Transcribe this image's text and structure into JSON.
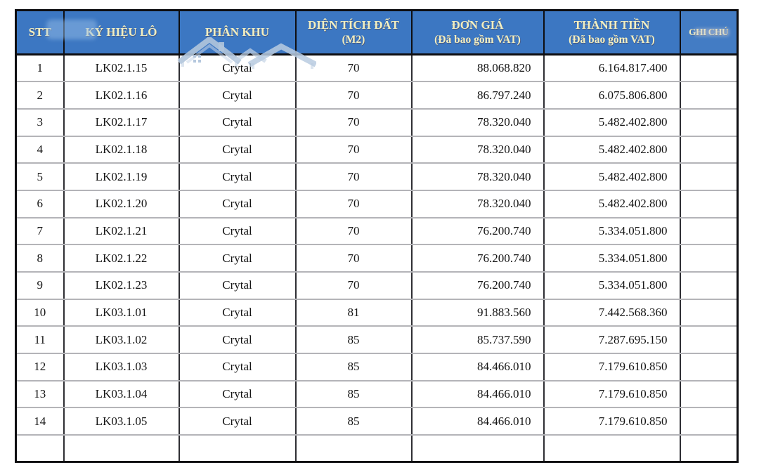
{
  "colors": {
    "header_bg": "#3c77c2",
    "header_text": "#f2efc2",
    "cell_text": "#141414",
    "outer_border": "#0e0e11",
    "row_divider": "#b4b4b8",
    "col_divider": "#2e2e33",
    "watermark_blue": "#b5c6da",
    "page_bg": "#ffffff"
  },
  "table": {
    "col_keys": [
      "stt",
      "lot",
      "zone",
      "area",
      "price",
      "total",
      "note"
    ],
    "header": {
      "stt": "STT",
      "lot": "KÝ HIỆU LÔ",
      "zone": "PHÂN KHU",
      "area_line1": "DIỆN TÍCH ĐẤT",
      "area_line2": "(M2)",
      "price_line1": "ĐƠN GIÁ",
      "price_line2": "(Đã bao gồm VAT)",
      "total_line1": "THÀNH TIỀN",
      "total_line2": "(Đã bao gồm VAT)",
      "note": "GHI CHÚ"
    },
    "rows": [
      {
        "stt": "1",
        "lot": "LK02.1.15",
        "zone": "Crytal",
        "area": "70",
        "price": "88.068.820",
        "total": "6.164.817.400",
        "note": ""
      },
      {
        "stt": "2",
        "lot": "LK02.1.16",
        "zone": "Crytal",
        "area": "70",
        "price": "86.797.240",
        "total": "6.075.806.800",
        "note": ""
      },
      {
        "stt": "3",
        "lot": "LK02.1.17",
        "zone": "Crytal",
        "area": "70",
        "price": "78.320.040",
        "total": "5.482.402.800",
        "note": ""
      },
      {
        "stt": "4",
        "lot": "LK02.1.18",
        "zone": "Crytal",
        "area": "70",
        "price": "78.320.040",
        "total": "5.482.402.800",
        "note": ""
      },
      {
        "stt": "5",
        "lot": "LK02.1.19",
        "zone": "Crytal",
        "area": "70",
        "price": "78.320.040",
        "total": "5.482.402.800",
        "note": ""
      },
      {
        "stt": "6",
        "lot": "LK02.1.20",
        "zone": "Crytal",
        "area": "70",
        "price": "78.320.040",
        "total": "5.482.402.800",
        "note": ""
      },
      {
        "stt": "7",
        "lot": "LK02.1.21",
        "zone": "Crytal",
        "area": "70",
        "price": "76.200.740",
        "total": "5.334.051.800",
        "note": ""
      },
      {
        "stt": "8",
        "lot": "LK02.1.22",
        "zone": "Crytal",
        "area": "70",
        "price": "76.200.740",
        "total": "5.334.051.800",
        "note": ""
      },
      {
        "stt": "9",
        "lot": "LK02.1.23",
        "zone": "Crytal",
        "area": "70",
        "price": "76.200.740",
        "total": "5.334.051.800",
        "note": ""
      },
      {
        "stt": "10",
        "lot": "LK03.1.01",
        "zone": "Crytal",
        "area": "81",
        "price": "91.883.560",
        "total": "7.442.568.360",
        "note": ""
      },
      {
        "stt": "11",
        "lot": "LK03.1.02",
        "zone": "Crytal",
        "area": "85",
        "price": "85.737.590",
        "total": "7.287.695.150",
        "note": ""
      },
      {
        "stt": "12",
        "lot": "LK03.1.03",
        "zone": "Crytal",
        "area": "85",
        "price": "84.466.010",
        "total": "7.179.610.850",
        "note": ""
      },
      {
        "stt": "13",
        "lot": "LK03.1.04",
        "zone": "Crytal",
        "area": "85",
        "price": "84.466.010",
        "total": "7.179.610.850",
        "note": ""
      },
      {
        "stt": "14",
        "lot": "LK03.1.05",
        "zone": "Crytal",
        "area": "85",
        "price": "84.466.010",
        "total": "7.179.610.850",
        "note": ""
      }
    ],
    "clipped_next_row": true
  },
  "watermark": {
    "name": "house-roofs-logo"
  }
}
